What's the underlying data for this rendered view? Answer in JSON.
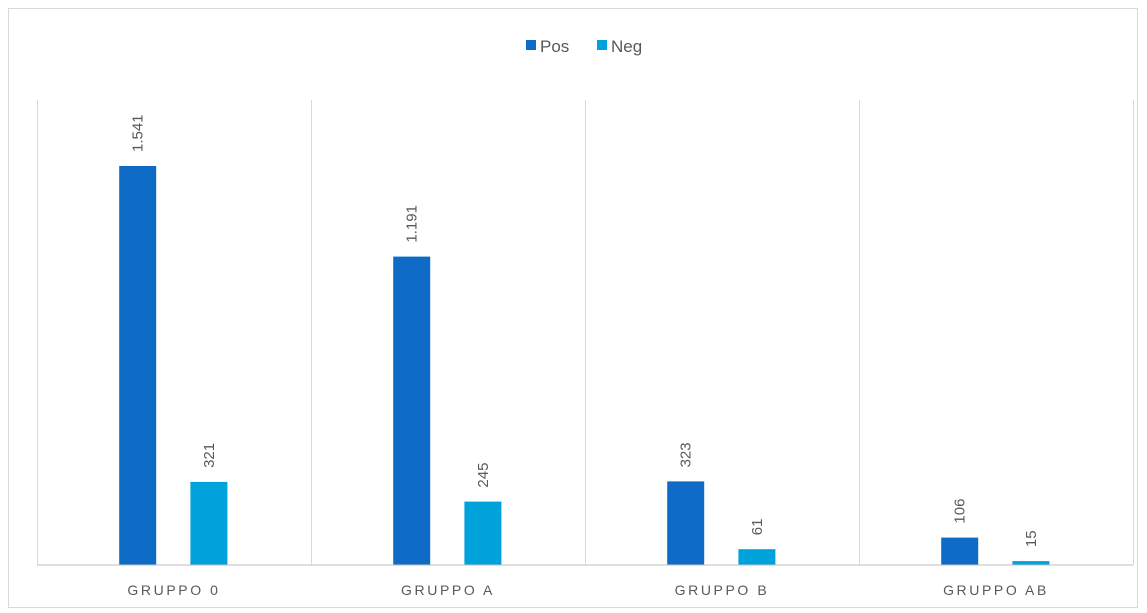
{
  "chart_data": {
    "type": "bar",
    "categories": [
      "GRUPPO 0",
      "GRUPPO A",
      "GRUPPO B",
      "GRUPPO AB"
    ],
    "series": [
      {
        "name": "Pos",
        "color": "#0f6cc6",
        "values": [
          1541,
          1191,
          323,
          106
        ],
        "labels": [
          "1.541",
          "1.191",
          "323",
          "106"
        ]
      },
      {
        "name": "Neg",
        "color": "#00a2db",
        "values": [
          321,
          245,
          61,
          15
        ],
        "labels": [
          "321",
          "245",
          "61",
          "15"
        ]
      }
    ],
    "ylim": [
      0,
      1541
    ],
    "grid": "vertical category separators",
    "legend_position": "top-center",
    "data_labels": "rotated vertical above bars"
  }
}
